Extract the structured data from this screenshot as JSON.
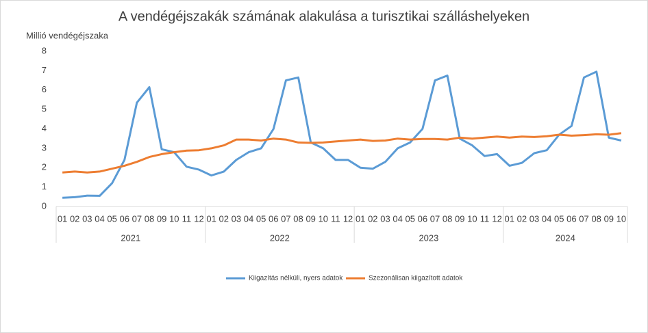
{
  "chart_data": {
    "type": "line",
    "title": "A vendégéjszakák számának alakulása a turisztikai szálláshelyeken",
    "y_label": "Millió vendégéjszaka",
    "groups": [
      {
        "name": "2021",
        "categories": [
          "01",
          "02",
          "03",
          "04",
          "05",
          "06",
          "07",
          "08",
          "09",
          "10",
          "11",
          "12"
        ]
      },
      {
        "name": "2022",
        "categories": [
          "01",
          "02",
          "03",
          "04",
          "05",
          "06",
          "07",
          "08",
          "09",
          "10",
          "11",
          "12"
        ]
      },
      {
        "name": "2023",
        "categories": [
          "01",
          "02",
          "03",
          "04",
          "05",
          "06",
          "07",
          "08",
          "09",
          "10",
          "11",
          "12"
        ]
      },
      {
        "name": "2024",
        "categories": [
          "01",
          "02",
          "03",
          "04",
          "05",
          "06",
          "07",
          "08",
          "09",
          "10"
        ]
      }
    ],
    "series": [
      {
        "name": "Kiigazítás nélküli, nyers adatok",
        "color": "#5b9bd5",
        "values": [
          0.45,
          0.48,
          0.56,
          0.55,
          1.2,
          2.4,
          5.35,
          6.15,
          2.95,
          2.8,
          2.05,
          1.9,
          1.6,
          1.8,
          2.4,
          2.8,
          3.0,
          4.0,
          6.5,
          6.65,
          3.3,
          3.0,
          2.4,
          2.4,
          2.0,
          1.95,
          2.3,
          3.0,
          3.3,
          4.0,
          6.5,
          6.75,
          3.5,
          3.15,
          2.6,
          2.7,
          2.1,
          2.25,
          2.75,
          2.9,
          3.7,
          4.15,
          6.65,
          6.95,
          3.55,
          3.4
        ]
      },
      {
        "name": "Szezonálisan kiigazított adatok",
        "color": "#ed7d31",
        "values": [
          1.75,
          1.8,
          1.75,
          1.8,
          1.95,
          2.1,
          2.3,
          2.55,
          2.7,
          2.8,
          2.88,
          2.9,
          3.0,
          3.15,
          3.45,
          3.45,
          3.4,
          3.5,
          3.45,
          3.3,
          3.28,
          3.3,
          3.35,
          3.4,
          3.45,
          3.38,
          3.4,
          3.5,
          3.45,
          3.48,
          3.48,
          3.45,
          3.55,
          3.5,
          3.55,
          3.6,
          3.55,
          3.6,
          3.58,
          3.62,
          3.7,
          3.65,
          3.68,
          3.72,
          3.7,
          3.78
        ]
      }
    ],
    "ylim": [
      0,
      8
    ],
    "yticks": [
      0,
      1,
      2,
      3,
      4,
      5,
      6,
      7,
      8
    ],
    "grid": false,
    "legend": "bottom"
  }
}
